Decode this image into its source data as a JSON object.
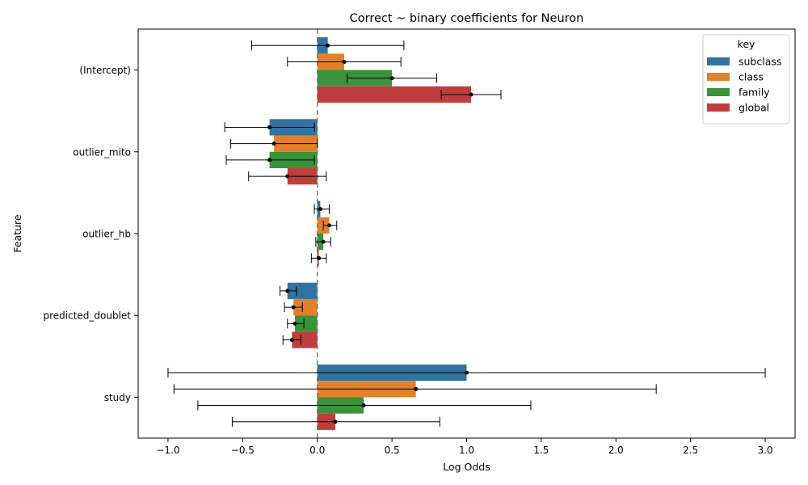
{
  "chart_data": {
    "type": "bar",
    "orientation": "horizontal",
    "title": "Correct ~ binary coefficients for Neuron",
    "xlabel": "Log Odds",
    "ylabel": "Feature",
    "xlim": [
      -1.2,
      3.2
    ],
    "xticks": [
      -1.0,
      -0.5,
      0.0,
      0.5,
      1.0,
      1.5,
      2.0,
      2.5,
      3.0
    ],
    "xtick_labels": [
      "−1.0",
      "−0.5",
      "0.0",
      "0.5",
      "1.0",
      "1.5",
      "2.0",
      "2.5",
      "3.0"
    ],
    "reference_line": 0,
    "grid": false,
    "categories": [
      "(Intercept)",
      "outlier_mito",
      "outlier_hb",
      "predicted_doublet",
      "study"
    ],
    "legend": {
      "title": "key",
      "position": "top-right"
    },
    "series": [
      {
        "name": "subclass",
        "color": "#3274a1",
        "values": [
          0.07,
          -0.32,
          0.02,
          -0.2,
          1.0
        ],
        "ci_low": [
          -0.44,
          -0.62,
          -0.02,
          -0.25,
          -1.0
        ],
        "ci_high": [
          0.58,
          -0.02,
          0.08,
          -0.14,
          3.0
        ]
      },
      {
        "name": "class",
        "color": "#e1812c",
        "values": [
          0.18,
          -0.29,
          0.08,
          -0.16,
          0.66
        ],
        "ci_low": [
          -0.2,
          -0.58,
          0.04,
          -0.22,
          -0.96
        ],
        "ci_high": [
          0.56,
          0.0,
          0.13,
          -0.1,
          2.27
        ]
      },
      {
        "name": "family",
        "color": "#3a923a",
        "values": [
          0.5,
          -0.32,
          0.04,
          -0.15,
          0.31
        ],
        "ci_low": [
          0.2,
          -0.61,
          -0.01,
          -0.2,
          -0.8
        ],
        "ci_high": [
          0.8,
          -0.02,
          0.09,
          -0.09,
          1.43
        ]
      },
      {
        "name": "global",
        "color": "#c03d3e",
        "values": [
          1.03,
          -0.2,
          0.01,
          -0.17,
          0.12
        ],
        "ci_low": [
          0.83,
          -0.46,
          -0.04,
          -0.23,
          -0.57
        ],
        "ci_high": [
          1.23,
          0.06,
          0.06,
          -0.11,
          0.82
        ]
      }
    ]
  }
}
